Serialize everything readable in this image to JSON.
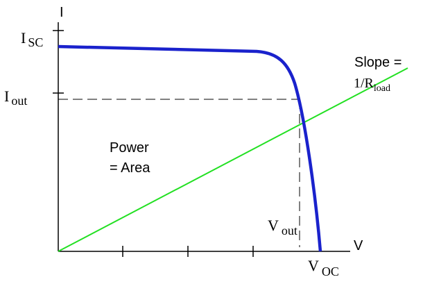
{
  "axis_labels": {
    "current": "I",
    "voltage": "V"
  },
  "labels": {
    "isc": {
      "main": "I",
      "sub": "SC"
    },
    "iout": {
      "main": "I",
      "sub": "out"
    },
    "vout": {
      "main": "V",
      "sub": "out"
    },
    "voc": {
      "main": "V",
      "sub": "OC"
    },
    "slope": {
      "line1": "Slope =",
      "line2_main": "1/R",
      "line2_sub": "load"
    },
    "power": {
      "line1": "Power",
      "line2": "= Area"
    }
  }
}
